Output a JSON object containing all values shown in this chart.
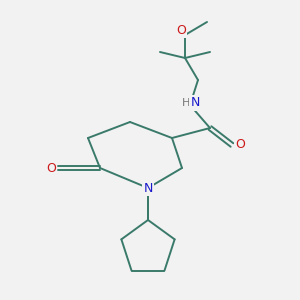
{
  "background_color": "#f2f2f2",
  "bond_color": "#3a7a6a",
  "atom_colors": {
    "N": "#1a1acc",
    "O": "#cc1a1a",
    "H": "#777777"
  },
  "figsize": [
    3.0,
    3.0
  ],
  "dpi": 100,
  "bond_lw": 1.4,
  "font_size": 8.5
}
